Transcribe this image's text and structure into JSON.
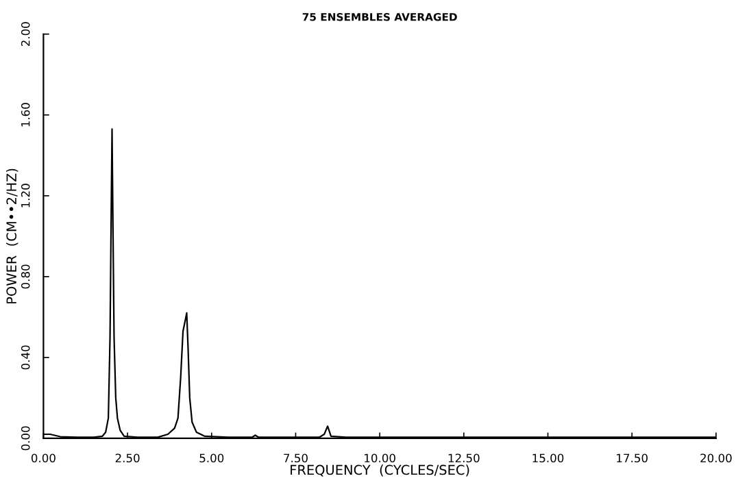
{
  "chart_data": {
    "type": "line",
    "title": "75 ENSEMBLES AVERAGED",
    "xlabel": "FREQUENCY  (CYCLES/SEC)",
    "ylabel": "POWER  (CM••2/HZ)",
    "x": [
      0.0,
      0.2,
      0.5,
      1.0,
      1.5,
      1.75,
      1.85,
      1.93,
      1.98,
      2.02,
      2.04,
      2.07,
      2.1,
      2.15,
      2.2,
      2.28,
      2.4,
      2.8,
      3.4,
      3.7,
      3.9,
      4.0,
      4.08,
      4.15,
      4.2,
      4.26,
      4.3,
      4.35,
      4.42,
      4.55,
      4.8,
      5.5,
      6.2,
      6.3,
      6.4,
      8.2,
      8.35,
      8.45,
      8.55,
      9.0,
      20.0
    ],
    "series": [
      {
        "color": "#000000",
        "values": [
          0.02,
          0.02,
          0.008,
          0.005,
          0.005,
          0.01,
          0.03,
          0.1,
          0.5,
          1.2,
          1.53,
          1.0,
          0.5,
          0.2,
          0.1,
          0.04,
          0.01,
          0.005,
          0.005,
          0.02,
          0.05,
          0.1,
          0.3,
          0.53,
          0.57,
          0.62,
          0.45,
          0.2,
          0.08,
          0.03,
          0.01,
          0.005,
          0.005,
          0.015,
          0.005,
          0.005,
          0.02,
          0.06,
          0.01,
          0.005,
          0.005
        ]
      }
    ],
    "xlim": [
      0,
      20
    ],
    "ylim": [
      0,
      2
    ],
    "xticks": [
      {
        "value": 0,
        "label": "0.00"
      },
      {
        "value": 2.5,
        "label": "2.50"
      },
      {
        "value": 5,
        "label": "5.00"
      },
      {
        "value": 7.5,
        "label": "7.50"
      },
      {
        "value": 10,
        "label": "10.00"
      },
      {
        "value": 12.5,
        "label": "12.50"
      },
      {
        "value": 15,
        "label": "15.00"
      },
      {
        "value": 17.5,
        "label": "17.50"
      },
      {
        "value": 20,
        "label": "20.00"
      }
    ],
    "yticks": [
      {
        "value": 0,
        "label": "0.00"
      },
      {
        "value": 0.4,
        "label": "0.40"
      },
      {
        "value": 0.8,
        "label": "0.80"
      },
      {
        "value": 1.2,
        "label": "1.20"
      },
      {
        "value": 1.6,
        "label": "1.60"
      },
      {
        "value": 2,
        "label": "2.00"
      }
    ],
    "grid": false,
    "line_style": "solid",
    "marker": "none"
  }
}
